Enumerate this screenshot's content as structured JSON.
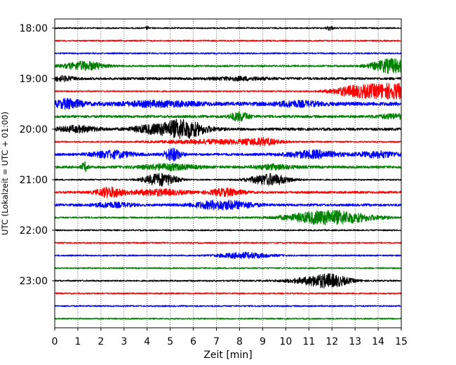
{
  "chart_data": {
    "type": "line",
    "title": "",
    "xlabel": "Zeit  [min]",
    "ylabel": "UTC (Lokalzeit = UTC + 01:00)",
    "xlim": [
      0,
      15
    ],
    "x_ticks": [
      "0",
      "1",
      "2",
      "3",
      "4",
      "5",
      "6",
      "7",
      "8",
      "9",
      "10",
      "11",
      "12",
      "13",
      "14",
      "15"
    ],
    "y_ticks": [
      "18:00",
      "19:00",
      "20:00",
      "21:00",
      "22:00",
      "23:00"
    ],
    "grid": "vertical dotted",
    "colors": [
      "#000000",
      "#ff0000",
      "#0000ff",
      "#008000"
    ],
    "trace_start_utc": "18:00",
    "trace_interval_min": 15,
    "series": [
      {
        "start": "18:00",
        "color": "#000000",
        "noise": 1.0,
        "bursts": [
          [
            11.9,
            0.1,
            3
          ],
          [
            4.0,
            0.05,
            2
          ]
        ]
      },
      {
        "start": "18:15",
        "color": "#ff0000",
        "noise": 1.0,
        "bursts": []
      },
      {
        "start": "18:30",
        "color": "#0000ff",
        "noise": 1.0,
        "bursts": []
      },
      {
        "start": "18:45",
        "color": "#008000",
        "noise": 1.3,
        "bursts": [
          [
            1.3,
            0.6,
            6
          ],
          [
            14.6,
            0.6,
            10
          ]
        ]
      },
      {
        "start": "19:00",
        "color": "#000000",
        "noise": 1.7,
        "bursts": [
          [
            0.3,
            0.4,
            3
          ],
          [
            8.0,
            0.8,
            2
          ]
        ]
      },
      {
        "start": "19:15",
        "color": "#ff0000",
        "noise": 1.0,
        "bursts": [
          [
            14.6,
            1.2,
            11
          ],
          [
            12.8,
            0.6,
            4
          ]
        ]
      },
      {
        "start": "19:30",
        "color": "#0000ff",
        "noise": 2.6,
        "bursts": [
          [
            0.6,
            0.4,
            6
          ],
          [
            4.5,
            1.2,
            3
          ],
          [
            10.5,
            0.7,
            3
          ]
        ]
      },
      {
        "start": "19:45",
        "color": "#008000",
        "noise": 1.8,
        "bursts": [
          [
            8.0,
            0.3,
            6
          ],
          [
            14.7,
            0.5,
            3
          ]
        ]
      },
      {
        "start": "20:00",
        "color": "#000000",
        "noise": 1.9,
        "bursts": [
          [
            5.5,
            0.7,
            13
          ],
          [
            1.0,
            0.6,
            4
          ],
          [
            4.0,
            0.5,
            4
          ]
        ]
      },
      {
        "start": "20:15",
        "color": "#ff0000",
        "noise": 1.0,
        "bursts": [
          [
            7.0,
            1.6,
            3
          ],
          [
            9.0,
            0.5,
            4
          ]
        ]
      },
      {
        "start": "20:30",
        "color": "#0000ff",
        "noise": 1.8,
        "bursts": [
          [
            5.1,
            0.25,
            9
          ],
          [
            2.5,
            0.6,
            5
          ],
          [
            11.2,
            0.8,
            5
          ],
          [
            14.0,
            0.6,
            4
          ]
        ]
      },
      {
        "start": "20:45",
        "color": "#008000",
        "noise": 1.8,
        "bursts": [
          [
            1.3,
            0.1,
            6
          ],
          [
            4.9,
            0.8,
            4
          ],
          [
            9.5,
            0.6,
            3
          ]
        ]
      },
      {
        "start": "21:00",
        "color": "#000000",
        "noise": 1.0,
        "bursts": [
          [
            4.6,
            0.5,
            9
          ],
          [
            9.3,
            0.6,
            8
          ]
        ]
      },
      {
        "start": "21:15",
        "color": "#ff0000",
        "noise": 1.6,
        "bursts": [
          [
            2.4,
            0.4,
            7
          ],
          [
            7.4,
            0.5,
            5
          ],
          [
            4.5,
            0.8,
            4
          ]
        ]
      },
      {
        "start": "21:30",
        "color": "#0000ff",
        "noise": 1.7,
        "bursts": [
          [
            6.9,
            0.7,
            5
          ],
          [
            2.5,
            0.6,
            3
          ],
          [
            8.0,
            0.6,
            3
          ]
        ]
      },
      {
        "start": "21:45",
        "color": "#008000",
        "noise": 1.2,
        "bursts": [
          [
            11.9,
            1.2,
            10
          ]
        ]
      },
      {
        "start": "22:00",
        "color": "#000000",
        "noise": 1.0,
        "bursts": []
      },
      {
        "start": "22:15",
        "color": "#ff0000",
        "noise": 1.0,
        "bursts": []
      },
      {
        "start": "22:30",
        "color": "#0000ff",
        "noise": 1.0,
        "bursts": [
          [
            8.2,
            0.8,
            4
          ]
        ]
      },
      {
        "start": "22:45",
        "color": "#008000",
        "noise": 1.0,
        "bursts": []
      },
      {
        "start": "23:00",
        "color": "#000000",
        "noise": 1.1,
        "bursts": [
          [
            11.9,
            0.6,
            8
          ],
          [
            11.0,
            0.8,
            3
          ]
        ]
      },
      {
        "start": "23:15",
        "color": "#ff0000",
        "noise": 1.0,
        "bursts": []
      },
      {
        "start": "23:30",
        "color": "#0000ff",
        "noise": 1.0,
        "bursts": []
      },
      {
        "start": "23:45",
        "color": "#008000",
        "noise": 1.0,
        "bursts": []
      }
    ]
  }
}
